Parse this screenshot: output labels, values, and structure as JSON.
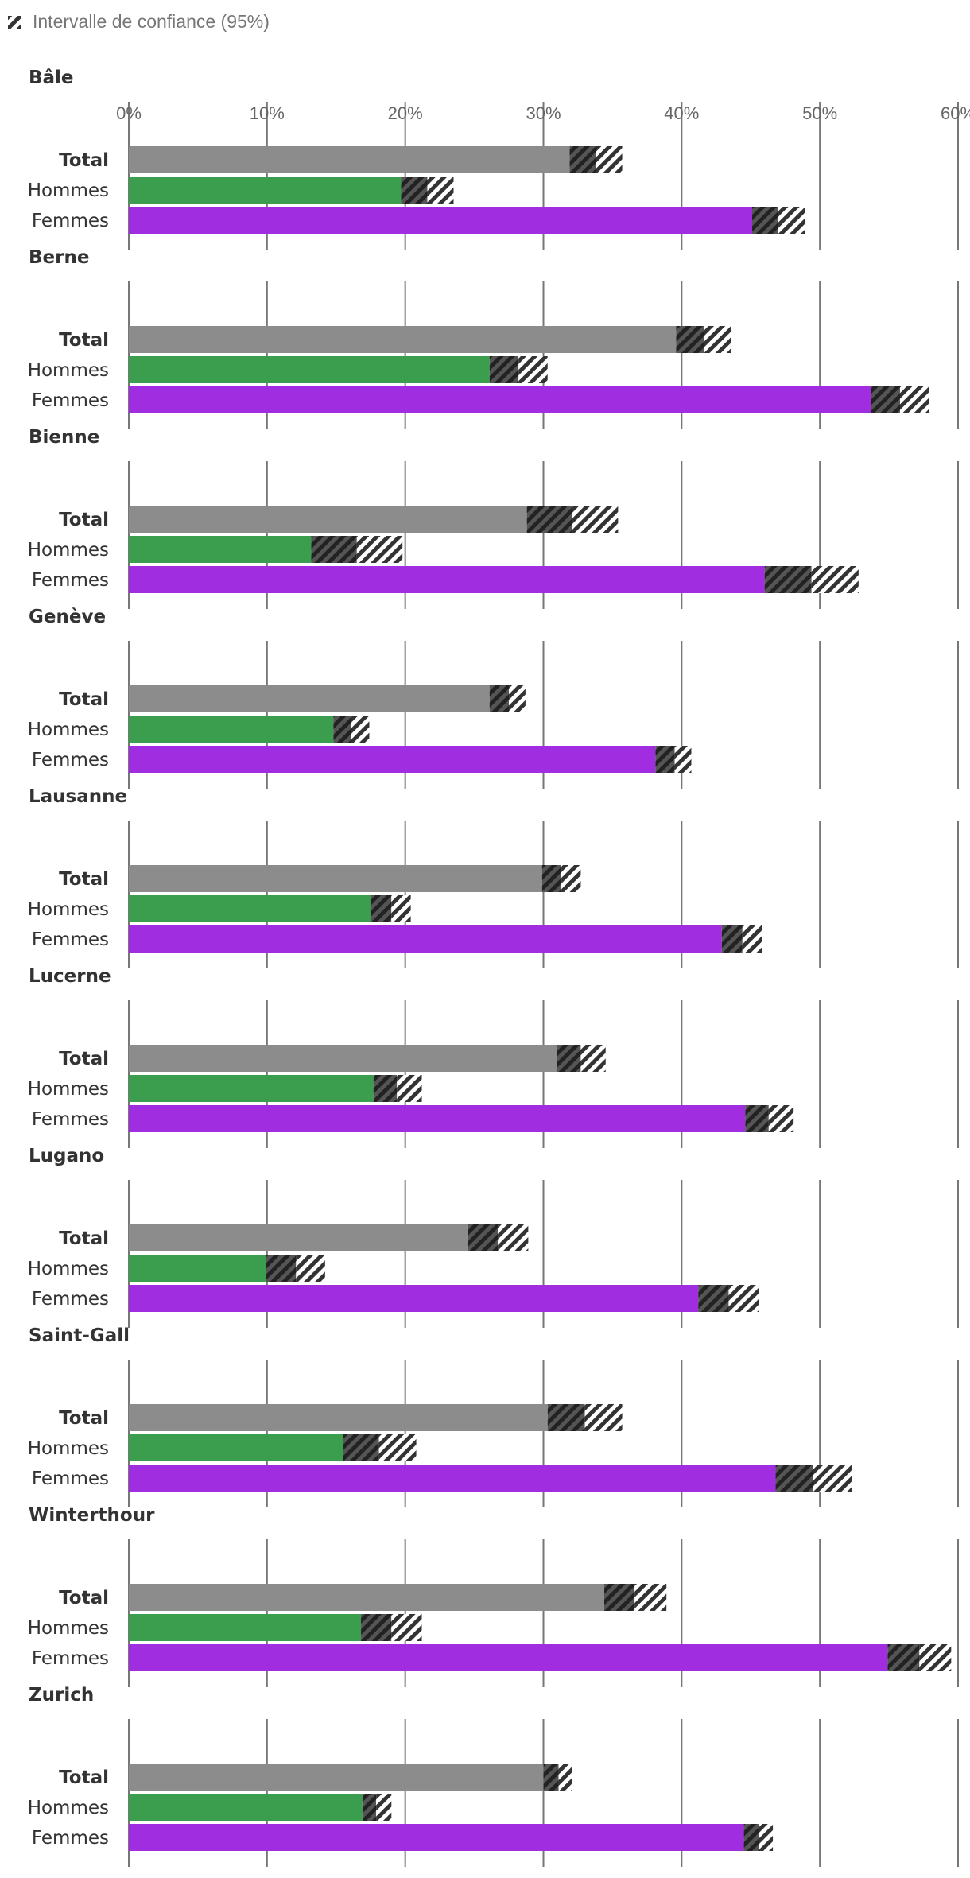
{
  "chart_data": {
    "type": "bar",
    "orientation": "horizontal",
    "legend": {
      "label": "Intervalle de confiance (95%)",
      "icon": "hatch-icon",
      "placement": "top-left"
    },
    "xaxis": {
      "min": 0,
      "max": 60,
      "ticks": [
        0,
        10,
        20,
        30,
        40,
        50,
        60
      ],
      "tick_labels": [
        "0%",
        "10%",
        "20%",
        "30%",
        "40%",
        "50%",
        "60%"
      ]
    },
    "categories": [
      "Total",
      "Hommes",
      "Femmes"
    ],
    "colors": {
      "Total": "#8c8c8c",
      "Hommes": "#3b9e4f",
      "Femmes": "#a02ee0"
    },
    "panels": [
      {
        "city": "Bâle",
        "values": [
          {
            "group": "Total",
            "value": 33.8,
            "ci_low": 31.9,
            "ci_high": 35.7
          },
          {
            "group": "Hommes",
            "value": 21.6,
            "ci_low": 19.7,
            "ci_high": 23.5
          },
          {
            "group": "Femmes",
            "value": 47.0,
            "ci_low": 45.1,
            "ci_high": 48.9
          }
        ]
      },
      {
        "city": "Berne",
        "values": [
          {
            "group": "Total",
            "value": 41.6,
            "ci_low": 39.6,
            "ci_high": 43.6
          },
          {
            "group": "Hommes",
            "value": 28.2,
            "ci_low": 26.1,
            "ci_high": 30.3
          },
          {
            "group": "Femmes",
            "value": 55.8,
            "ci_low": 53.7,
            "ci_high": 57.9
          }
        ]
      },
      {
        "city": "Bienne",
        "values": [
          {
            "group": "Total",
            "value": 32.1,
            "ci_low": 28.8,
            "ci_high": 35.4
          },
          {
            "group": "Hommes",
            "value": 16.5,
            "ci_low": 13.2,
            "ci_high": 19.8
          },
          {
            "group": "Femmes",
            "value": 49.4,
            "ci_low": 46.0,
            "ci_high": 52.8
          }
        ]
      },
      {
        "city": "Genève",
        "values": [
          {
            "group": "Total",
            "value": 27.5,
            "ci_low": 26.1,
            "ci_high": 28.7
          },
          {
            "group": "Hommes",
            "value": 16.1,
            "ci_low": 14.8,
            "ci_high": 17.4
          },
          {
            "group": "Femmes",
            "value": 39.5,
            "ci_low": 38.1,
            "ci_high": 40.7
          }
        ]
      },
      {
        "city": "Lausanne",
        "values": [
          {
            "group": "Total",
            "value": 31.3,
            "ci_low": 29.9,
            "ci_high": 32.7
          },
          {
            "group": "Hommes",
            "value": 19.0,
            "ci_low": 17.5,
            "ci_high": 20.4
          },
          {
            "group": "Femmes",
            "value": 44.4,
            "ci_low": 42.9,
            "ci_high": 45.8
          }
        ]
      },
      {
        "city": "Lucerne",
        "values": [
          {
            "group": "Total",
            "value": 32.7,
            "ci_low": 31.0,
            "ci_high": 34.5
          },
          {
            "group": "Hommes",
            "value": 19.4,
            "ci_low": 17.7,
            "ci_high": 21.2
          },
          {
            "group": "Femmes",
            "value": 46.3,
            "ci_low": 44.6,
            "ci_high": 48.1
          }
        ]
      },
      {
        "city": "Lugano",
        "values": [
          {
            "group": "Total",
            "value": 26.7,
            "ci_low": 24.5,
            "ci_high": 28.9
          },
          {
            "group": "Hommes",
            "value": 12.1,
            "ci_low": 9.9,
            "ci_high": 14.2
          },
          {
            "group": "Femmes",
            "value": 43.4,
            "ci_low": 41.2,
            "ci_high": 45.6
          }
        ]
      },
      {
        "city": "Saint-Gall",
        "values": [
          {
            "group": "Total",
            "value": 33.0,
            "ci_low": 30.3,
            "ci_high": 35.7
          },
          {
            "group": "Hommes",
            "value": 18.1,
            "ci_low": 15.5,
            "ci_high": 20.8
          },
          {
            "group": "Femmes",
            "value": 49.5,
            "ci_low": 46.8,
            "ci_high": 52.3
          }
        ]
      },
      {
        "city": "Winterthour",
        "values": [
          {
            "group": "Total",
            "value": 36.6,
            "ci_low": 34.4,
            "ci_high": 38.9
          },
          {
            "group": "Hommes",
            "value": 19.0,
            "ci_low": 16.8,
            "ci_high": 21.2
          },
          {
            "group": "Femmes",
            "value": 57.2,
            "ci_low": 54.9,
            "ci_high": 59.5
          }
        ]
      },
      {
        "city": "Zurich",
        "values": [
          {
            "group": "Total",
            "value": 31.1,
            "ci_low": 30.0,
            "ci_high": 32.1
          },
          {
            "group": "Hommes",
            "value": 17.9,
            "ci_low": 16.9,
            "ci_high": 19.0
          },
          {
            "group": "Femmes",
            "value": 45.6,
            "ci_low": 44.5,
            "ci_high": 46.6
          }
        ]
      }
    ]
  }
}
